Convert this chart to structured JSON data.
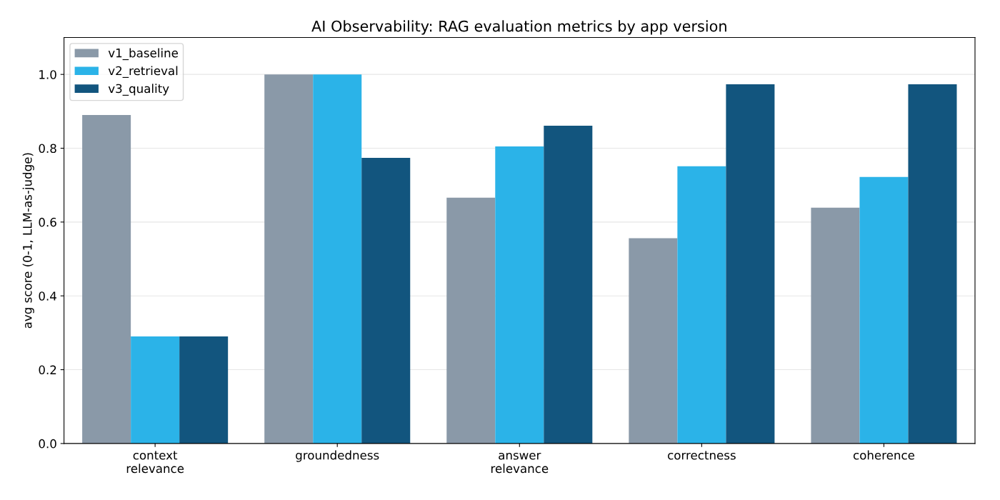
{
  "chart_data": {
    "type": "bar",
    "title": "AI Observability: RAG evaluation metrics by app version",
    "ylabel": "avg score (0-1, LLM-as-judge)",
    "categories": [
      "context\nrelevance",
      "groundedness",
      "answer\nrelevance",
      "correctness",
      "coherence"
    ],
    "series": [
      {
        "name": "v1_baseline",
        "color": "#8a99a8",
        "values": [
          0.89,
          1.0,
          0.666,
          0.556,
          0.639
        ]
      },
      {
        "name": "v2_retrieval",
        "color": "#2bb3e8",
        "values": [
          0.29,
          1.0,
          0.805,
          0.751,
          0.722
        ]
      },
      {
        "name": "v3_quality",
        "color": "#12557e",
        "values": [
          0.29,
          0.774,
          0.861,
          0.973,
          0.973
        ]
      }
    ],
    "ylim": [
      0,
      1.1
    ],
    "yticks": [
      {
        "value": 0,
        "label": "0.0"
      },
      0.2,
      0.4,
      0.6,
      0.8,
      {
        "value": 1,
        "label": "1.0"
      }
    ],
    "grid": "y",
    "legend": "top left"
  }
}
